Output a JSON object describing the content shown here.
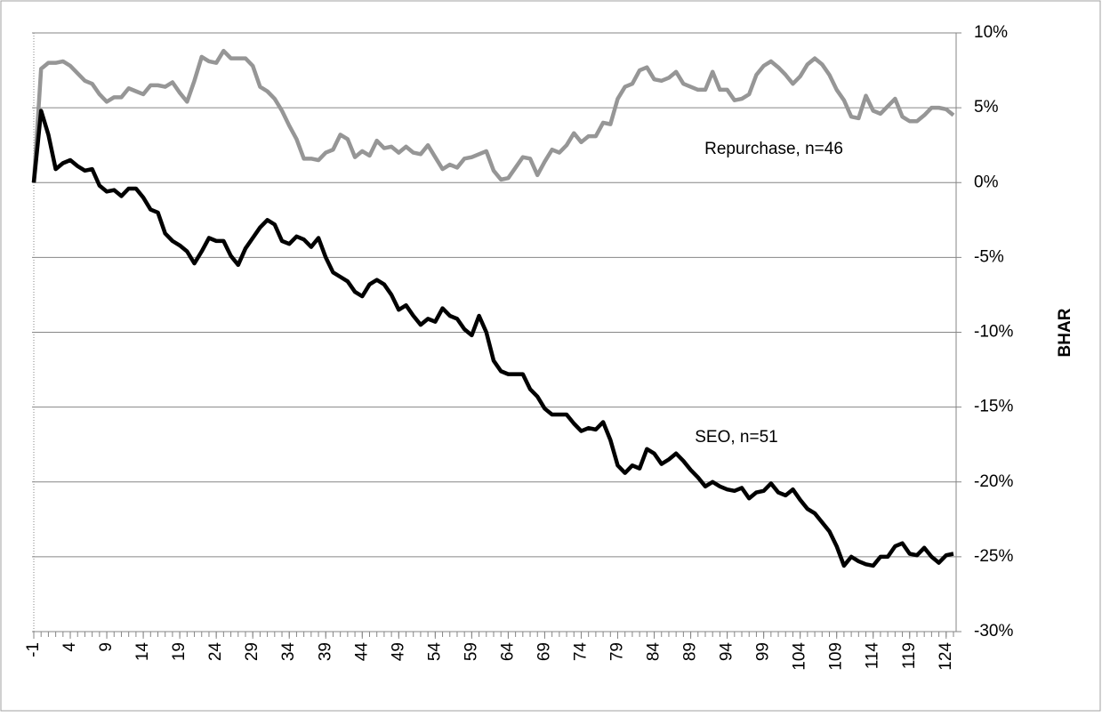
{
  "chart_data": {
    "type": "line",
    "x": [
      -1,
      0,
      1,
      2,
      3,
      4,
      5,
      6,
      7,
      8,
      9,
      10,
      11,
      12,
      13,
      14,
      15,
      16,
      17,
      18,
      19,
      20,
      21,
      22,
      23,
      24,
      25,
      26,
      27,
      28,
      29,
      30,
      31,
      32,
      33,
      34,
      35,
      36,
      37,
      38,
      39,
      40,
      41,
      42,
      43,
      44,
      45,
      46,
      47,
      48,
      49,
      50,
      51,
      52,
      53,
      54,
      55,
      56,
      57,
      58,
      59,
      60,
      61,
      62,
      63,
      64,
      65,
      66,
      67,
      68,
      69,
      70,
      71,
      72,
      73,
      74,
      75,
      76,
      77,
      78,
      79,
      80,
      81,
      82,
      83,
      84,
      85,
      86,
      87,
      88,
      89,
      90,
      91,
      92,
      93,
      94,
      95,
      96,
      97,
      98,
      99,
      100,
      101,
      102,
      103,
      104,
      105,
      106,
      107,
      108,
      109,
      110,
      111,
      112,
      113,
      114,
      115,
      116,
      117,
      118,
      119,
      120,
      121,
      122,
      123,
      124,
      125
    ],
    "xlim": [
      -1,
      125
    ],
    "xticks": [
      -1,
      4,
      9,
      14,
      19,
      24,
      29,
      34,
      39,
      44,
      49,
      54,
      59,
      64,
      69,
      74,
      79,
      84,
      89,
      94,
      99,
      104,
      109,
      114,
      119,
      124
    ],
    "ylabel": "BHAR",
    "ylim": [
      -30,
      10
    ],
    "yticks": [
      {
        "value": -30,
        "label": "-30%"
      },
      {
        "value": -25,
        "label": "-25%"
      },
      {
        "value": -20,
        "label": "-20%"
      },
      {
        "value": -15,
        "label": "-15%"
      },
      {
        "value": -10,
        "label": "-10%"
      },
      {
        "value": -5,
        "label": "-5%"
      },
      {
        "value": 0,
        "label": "0%"
      },
      {
        "value": 5,
        "label": "5%"
      },
      {
        "value": 10,
        "label": "10%"
      }
    ],
    "grid": true,
    "series": [
      {
        "name": "Repurchase, n=46",
        "color": "#969696",
        "values": [
          0,
          7.6,
          8.0,
          8.0,
          8.1,
          7.8,
          7.3,
          6.8,
          6.6,
          5.9,
          5.4,
          5.7,
          5.7,
          6.3,
          6.1,
          5.9,
          6.5,
          6.5,
          6.4,
          6.7,
          6.0,
          5.4,
          6.8,
          8.4,
          8.1,
          8.0,
          8.8,
          8.3,
          8.3,
          8.3,
          7.8,
          6.4,
          6.1,
          5.6,
          4.8,
          3.8,
          2.9,
          1.6,
          1.6,
          1.5,
          2.0,
          2.2,
          3.2,
          2.9,
          1.7,
          2.1,
          1.8,
          2.8,
          2.3,
          2.4,
          2.0,
          2.4,
          2.0,
          1.9,
          2.5,
          1.7,
          0.9,
          1.2,
          1.0,
          1.6,
          1.7,
          1.9,
          2.1,
          0.8,
          0.2,
          0.3,
          1.0,
          1.7,
          1.6,
          0.5,
          1.4,
          2.2,
          2.0,
          2.5,
          3.3,
          2.7,
          3.1,
          3.1,
          4.0,
          3.9,
          5.6,
          6.4,
          6.6,
          7.5,
          7.7,
          6.9,
          6.8,
          7.0,
          7.4,
          6.6,
          6.4,
          6.2,
          6.2,
          7.4,
          6.2,
          6.2,
          5.5,
          5.6,
          5.9,
          7.2,
          7.8,
          8.1,
          7.7,
          7.2,
          6.6,
          7.1,
          7.9,
          8.3,
          7.9,
          7.2,
          6.2,
          5.5,
          4.4,
          4.3,
          5.8,
          4.8,
          4.6,
          5.1,
          5.6,
          4.4,
          4.1,
          4.1,
          4.5,
          5.0,
          5.0,
          4.9,
          4.5
        ]
      },
      {
        "name": "SEO, n=51",
        "color": "#000000",
        "values": [
          0,
          4.8,
          3.2,
          0.9,
          1.3,
          1.5,
          1.1,
          0.8,
          0.9,
          -0.2,
          -0.6,
          -0.5,
          -0.9,
          -0.4,
          -0.4,
          -1.0,
          -1.8,
          -2.0,
          -3.4,
          -3.9,
          -4.2,
          -4.6,
          -5.4,
          -4.6,
          -3.7,
          -3.9,
          -3.9,
          -4.9,
          -5.5,
          -4.4,
          -3.7,
          -3.0,
          -2.5,
          -2.8,
          -3.9,
          -4.1,
          -3.6,
          -3.8,
          -4.3,
          -3.7,
          -5.0,
          -6.0,
          -6.3,
          -6.6,
          -7.3,
          -7.6,
          -6.8,
          -6.5,
          -6.8,
          -7.5,
          -8.5,
          -8.2,
          -8.9,
          -9.5,
          -9.1,
          -9.3,
          -8.4,
          -8.9,
          -9.1,
          -9.8,
          -10.2,
          -8.9,
          -10.0,
          -11.9,
          -12.6,
          -12.8,
          -12.8,
          -12.8,
          -13.8,
          -14.3,
          -15.1,
          -15.5,
          -15.5,
          -15.5,
          -16.1,
          -16.6,
          -16.4,
          -16.5,
          -16.0,
          -17.2,
          -18.9,
          -19.4,
          -18.9,
          -19.1,
          -17.8,
          -18.1,
          -18.8,
          -18.5,
          -18.1,
          -18.6,
          -19.2,
          -19.7,
          -20.3,
          -20.0,
          -20.3,
          -20.5,
          -20.6,
          -20.4,
          -21.1,
          -20.7,
          -20.6,
          -20.1,
          -20.7,
          -20.9,
          -20.5,
          -21.2,
          -21.8,
          -22.1,
          -22.7,
          -23.3,
          -24.3,
          -25.6,
          -25.0,
          -25.3,
          -25.5,
          -25.6,
          -25.0,
          -25.0,
          -24.3,
          -24.1,
          -24.8,
          -24.9,
          -24.4,
          -25.0,
          -25.4,
          -24.9,
          -24.8
        ]
      }
    ]
  }
}
